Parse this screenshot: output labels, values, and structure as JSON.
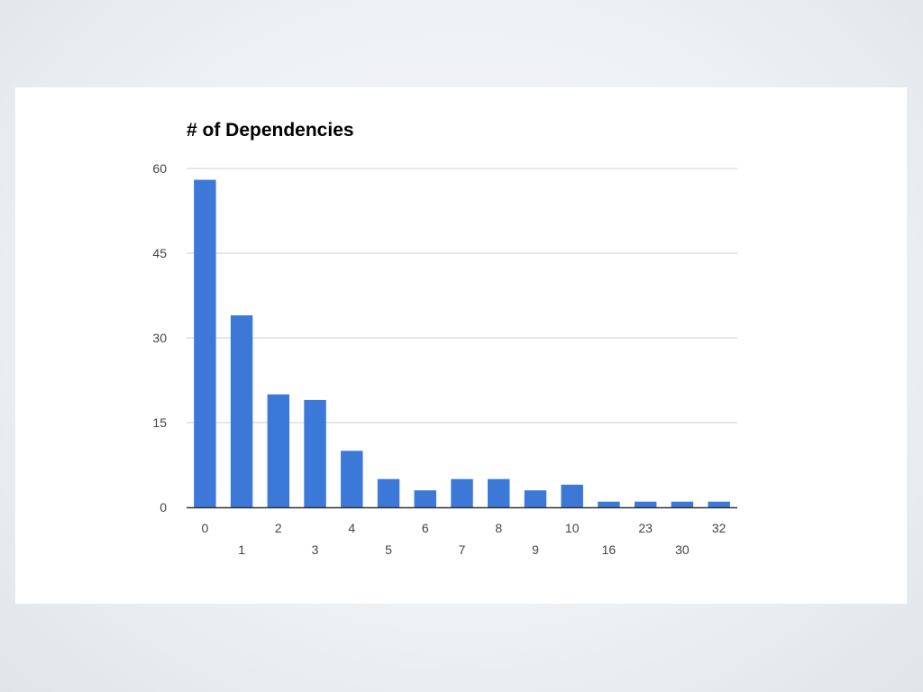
{
  "chart_data": {
    "type": "bar",
    "title": "# of Dependencies",
    "xlabel": "",
    "ylabel": "",
    "categories": [
      "0",
      "1",
      "2",
      "3",
      "4",
      "5",
      "6",
      "7",
      "8",
      "9",
      "10",
      "16",
      "23",
      "30",
      "32"
    ],
    "values": [
      58,
      34,
      20,
      19,
      10,
      5,
      3,
      5,
      5,
      3,
      4,
      1,
      1,
      1,
      1
    ],
    "ylim": [
      0,
      60
    ],
    "yticks": [
      "0",
      "15",
      "30",
      "45",
      "60"
    ],
    "grid": true,
    "legend": "none",
    "bar_color": "#3c78d8",
    "grid_color": "#cccccc",
    "baseline_color": "#333333"
  }
}
